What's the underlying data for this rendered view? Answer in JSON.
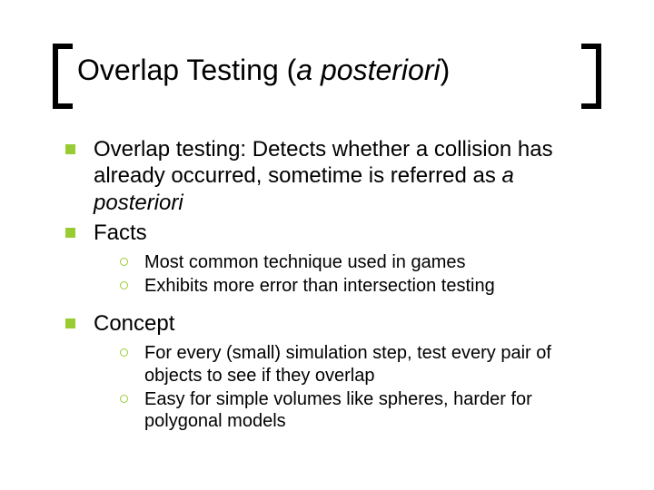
{
  "colors": {
    "accent": "#99cc33",
    "text": "#000000",
    "background": "#ffffff"
  },
  "title": {
    "part_roman": "Overlap Testing (",
    "part_italic": "a posteriori",
    "part_close": ")",
    "fontsize": 32
  },
  "body": {
    "fontsize_lvl1": 24,
    "fontsize_lvl2": 20,
    "items": [
      {
        "text_pre": "Overlap testing: Detects whether a collision has already occurred, sometime is referred as ",
        "text_italic": "a posteriori",
        "text_post": "",
        "children": []
      },
      {
        "text_pre": "Facts",
        "text_italic": "",
        "text_post": "",
        "children": [
          {
            "text": "Most common technique used in games"
          },
          {
            "text": "Exhibits more error than intersection testing"
          }
        ]
      },
      {
        "text_pre": "Concept",
        "text_italic": "",
        "text_post": "",
        "children": [
          {
            "text": "For every (small) simulation step, test every pair of objects to see if they overlap"
          },
          {
            "text": "Easy for simple volumes like spheres, harder for polygonal models"
          }
        ]
      }
    ]
  }
}
